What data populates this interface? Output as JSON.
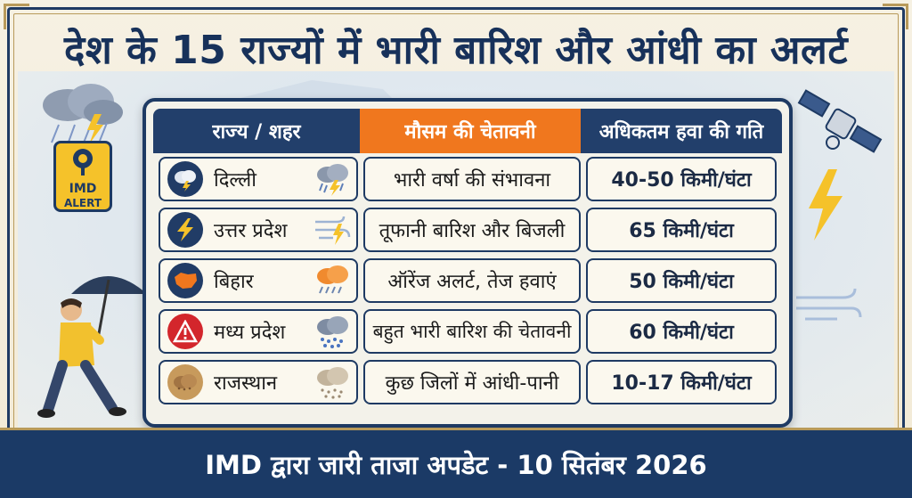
{
  "title": "देश के 15 राज्यों में भारी बारिश और आंधी का अलर्ट",
  "badge": {
    "line1": "IMD",
    "line2": "ALERT"
  },
  "table": {
    "headers": {
      "state": "राज्य / शहर",
      "warning": "मौसम की चेतावनी",
      "wind": "अधिकतम हवा की गति"
    },
    "rows": [
      {
        "state": "दिल्ली",
        "warning": "भारी वर्षा की संभावना",
        "wind": "40-50 किमी/घंटा",
        "badge_icon": "storm-cloud-icon",
        "weather_icon": "thunderstorm-rain-icon"
      },
      {
        "state": "उत्तर प्रदेश",
        "warning": "तूफानी बारिश और बिजली",
        "wind": "65 किमी/घंटा",
        "badge_icon": "lightning-icon",
        "weather_icon": "wind-lightning-icon"
      },
      {
        "state": "बिहार",
        "warning": "ऑरेंज अलर्ट, तेज हवाएं",
        "wind": "50 किमी/घंटा",
        "badge_icon": "bihar-map-icon",
        "weather_icon": "orange-cloud-rain-icon"
      },
      {
        "state": "मध्य प्रदेश",
        "warning": "बहुत भारी बारिश की चेतावनी",
        "wind": "60 किमी/घंटा",
        "badge_icon": "warning-triangle-icon",
        "weather_icon": "heavy-rain-cloud-icon"
      },
      {
        "state": "राजस्थान",
        "warning": "कुछ जिलों में आंधी-पानी",
        "wind": "10-17 किमी/घंटा",
        "badge_icon": "dust-storm-icon",
        "weather_icon": "dust-cloud-rain-icon"
      }
    ]
  },
  "footer": "IMD द्वारा जारी ताजा अपडेट - 10 सितंबर 2026",
  "colors": {
    "navy": "#1e3a63",
    "orange": "#f0771e",
    "gold": "#b89a5a",
    "yellow": "#f5c22a",
    "red": "#d3262c",
    "cream": "#fbf8ee"
  }
}
